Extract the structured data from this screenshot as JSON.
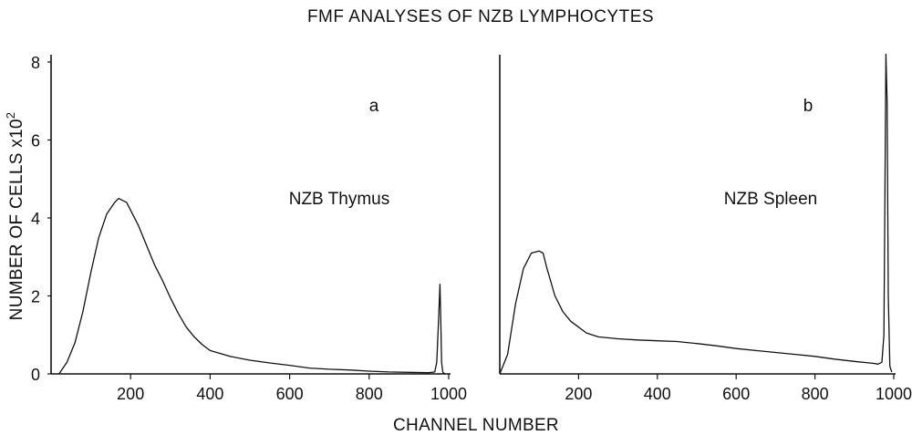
{
  "chart_data": [
    {
      "type": "line",
      "title": "FMF ANALYSES OF NZB LYMPHOCYTES",
      "xlabel": "CHANNEL NUMBER",
      "ylabel": "NUMBER OF CELLS x10",
      "ylabel_superscript": "2",
      "panel_label": "a",
      "annotation": "NZB Thymus",
      "xlim": [
        0,
        1000
      ],
      "ylim": [
        0,
        8
      ],
      "x_ticks": [
        200,
        400,
        600,
        800,
        1000
      ],
      "y_ticks": [
        0,
        2,
        4,
        6,
        8
      ],
      "grid": false,
      "series": [
        {
          "x": [
            20,
            40,
            60,
            80,
            100,
            120,
            140,
            160,
            170,
            180,
            190,
            200,
            220,
            240,
            260,
            280,
            300,
            320,
            340,
            360,
            380,
            400,
            450,
            500,
            550,
            600,
            650,
            700,
            750,
            800,
            850,
            900,
            950,
            965,
            970,
            975,
            978,
            980,
            982,
            985,
            990
          ],
          "y": [
            0.0,
            0.3,
            0.8,
            1.6,
            2.6,
            3.5,
            4.1,
            4.4,
            4.5,
            4.45,
            4.4,
            4.2,
            3.8,
            3.3,
            2.8,
            2.4,
            1.95,
            1.55,
            1.2,
            0.95,
            0.75,
            0.6,
            0.45,
            0.35,
            0.28,
            0.22,
            0.15,
            0.12,
            0.1,
            0.07,
            0.05,
            0.04,
            0.03,
            0.05,
            0.3,
            1.5,
            2.3,
            1.4,
            0.3,
            0.05,
            0.0
          ]
        }
      ]
    },
    {
      "type": "line",
      "xlabel": "CHANNEL NUMBER",
      "panel_label": "b",
      "annotation": "NZB Spleen",
      "xlim": [
        0,
        1000
      ],
      "ylim": [
        0,
        8
      ],
      "x_ticks": [
        200,
        400,
        600,
        800,
        1000
      ],
      "grid": false,
      "series": [
        {
          "x": [
            0,
            20,
            40,
            60,
            80,
            100,
            110,
            120,
            140,
            160,
            180,
            200,
            220,
            250,
            300,
            350,
            400,
            450,
            500,
            550,
            600,
            650,
            700,
            750,
            800,
            850,
            900,
            950,
            960,
            970,
            975,
            980,
            983,
            986,
            990,
            995
          ],
          "y": [
            0.0,
            0.5,
            1.8,
            2.7,
            3.1,
            3.15,
            3.1,
            2.7,
            2.0,
            1.6,
            1.35,
            1.2,
            1.05,
            0.95,
            0.9,
            0.87,
            0.85,
            0.83,
            0.78,
            0.72,
            0.65,
            0.6,
            0.55,
            0.5,
            0.45,
            0.38,
            0.32,
            0.27,
            0.25,
            0.3,
            1.0,
            8.2,
            7.0,
            2.0,
            0.2,
            0.05
          ]
        }
      ]
    }
  ]
}
